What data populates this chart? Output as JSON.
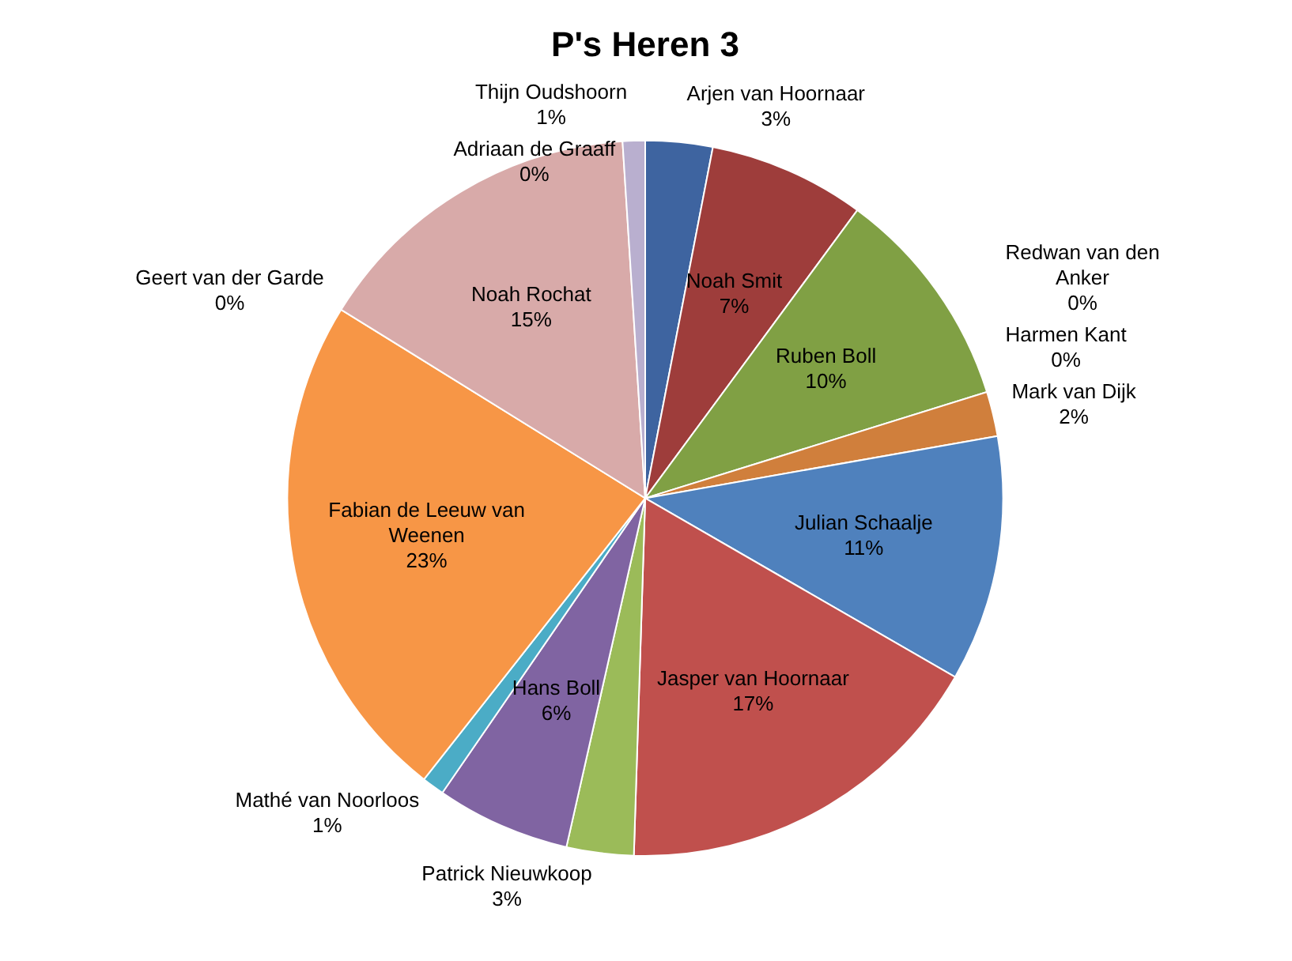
{
  "chart_data": {
    "type": "pie",
    "title": "P's Heren 3",
    "categories": [
      "Arjen van Hoornaar",
      "Noah Smit",
      "Ruben Boll",
      "Harmen Kant",
      "Redwan van den Anker",
      "Mark van Dijk",
      "Julian Schaalje",
      "Jasper van Hoornaar",
      "Patrick Nieuwkoop",
      "Hans Boll",
      "Mathé van Noorloos",
      "Fabian de Leeuw van Weenen",
      "Geert van der Garde",
      "Noah Rochat",
      "Adriaan de Graaff",
      "Thijn Oudshoorn"
    ],
    "values": [
      3,
      7,
      10,
      0,
      0,
      2,
      11,
      17,
      3,
      6,
      1,
      23,
      0,
      15,
      0,
      1
    ],
    "value_labels": [
      "3%",
      "7%",
      "10%",
      "0%",
      "0%",
      "2%",
      "11%",
      "17%",
      "3%",
      "6%",
      "1%",
      "23%",
      "0%",
      "15%",
      "0%",
      "1%"
    ],
    "colors": [
      "#3e64a0",
      "#9e3d3b",
      "#80a044",
      "#2c4d75",
      "#772c2a",
      "#d07f3c",
      "#4f81bd",
      "#c0504d",
      "#9bbb59",
      "#8064a2",
      "#4bacc6",
      "#f79646",
      "#95b3d7",
      "#d8aaa9",
      "#c3d69b",
      "#b9afcf"
    ],
    "legend": false
  }
}
